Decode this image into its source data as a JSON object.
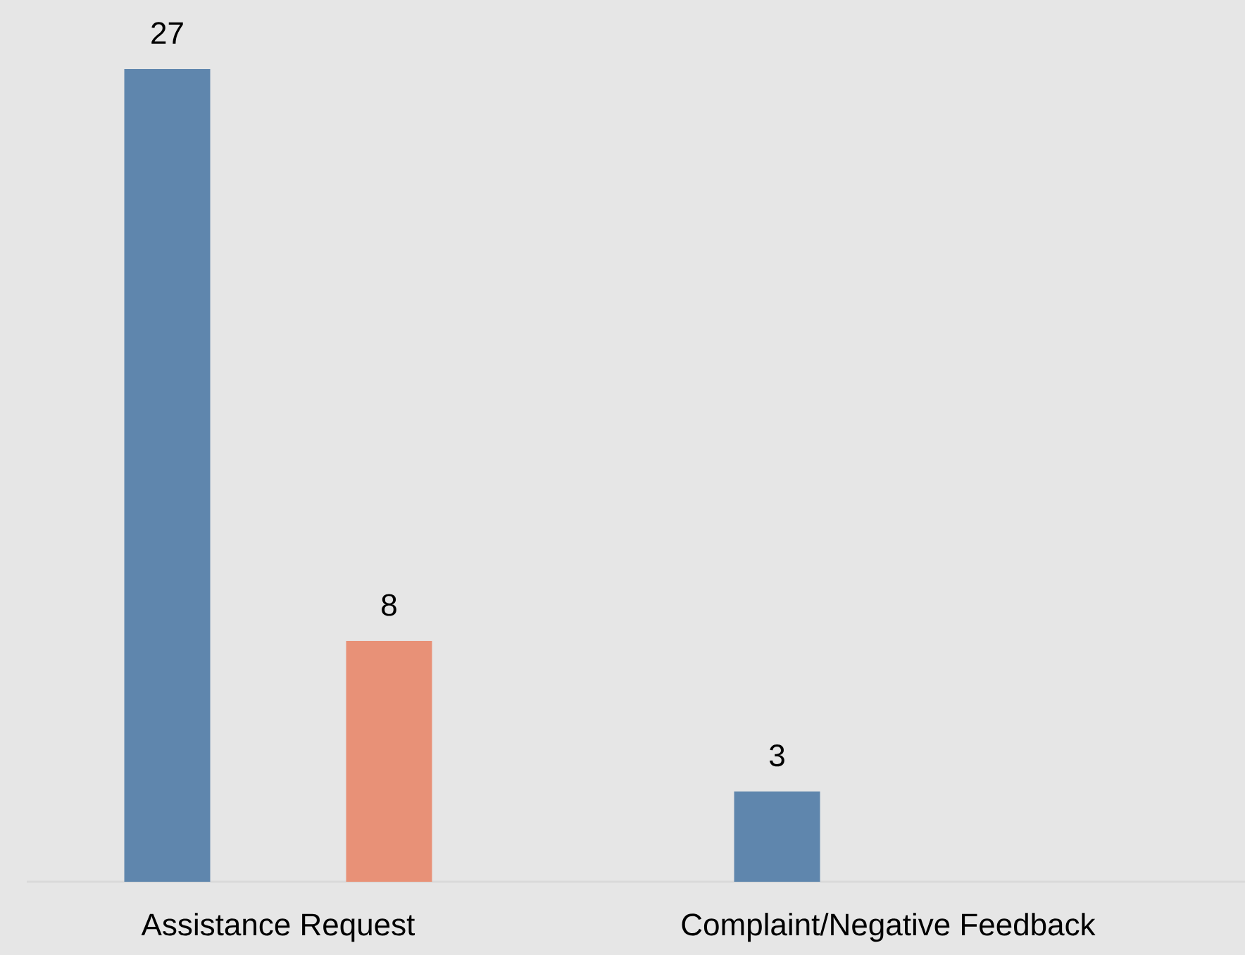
{
  "chart_data": {
    "type": "bar",
    "categories": [
      "Assistance Request",
      "Complaint/Negative Feedback"
    ],
    "series": [
      {
        "color": "#5f86ad",
        "values": [
          27,
          3
        ]
      },
      {
        "color": "#e89177",
        "values": [
          8,
          null
        ]
      }
    ],
    "data_labels": true,
    "tick_labels": "x"
  }
}
